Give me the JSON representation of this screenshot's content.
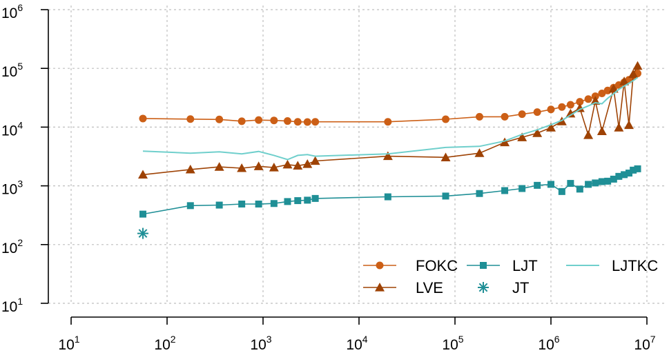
{
  "chart_data": {
    "type": "line",
    "title": "",
    "xlabel": "",
    "ylabel": "",
    "x_scale": "log",
    "y_scale": "log",
    "xlim": [
      10,
      10000000
    ],
    "ylim": [
      10,
      1000000
    ],
    "grid": true,
    "legend_position": "bottom-right",
    "x_ticks": [
      {
        "base": "10",
        "exp": "1",
        "value": 10
      },
      {
        "base": "10",
        "exp": "2",
        "value": 100
      },
      {
        "base": "10",
        "exp": "3",
        "value": 1000
      },
      {
        "base": "10",
        "exp": "4",
        "value": 10000
      },
      {
        "base": "10",
        "exp": "5",
        "value": 100000
      },
      {
        "base": "10",
        "exp": "6",
        "value": 1000000
      },
      {
        "base": "10",
        "exp": "7",
        "value": 10000000
      }
    ],
    "y_ticks": [
      {
        "base": "10",
        "exp": "1",
        "value": 10
      },
      {
        "base": "10",
        "exp": "2",
        "value": 100
      },
      {
        "base": "10",
        "exp": "3",
        "value": 1000
      },
      {
        "base": "10",
        "exp": "4",
        "value": 10000
      },
      {
        "base": "10",
        "exp": "5",
        "value": 100000
      },
      {
        "base": "10",
        "exp": "6",
        "value": 1000000
      }
    ],
    "series": [
      {
        "name": "FOKC",
        "color": "#cc5f16",
        "marker": "circle",
        "line": true,
        "x": [
          56,
          175,
          350,
          600,
          900,
          1300,
          1800,
          2300,
          2900,
          3500,
          20000,
          80000,
          180000,
          330000,
          500000,
          720000,
          1000000,
          1300000,
          1600000,
          2000000,
          2450000,
          2900000,
          3400000,
          3900000,
          4500000,
          5100000,
          5800000,
          6500000,
          7200000,
          8000000
        ],
        "y": [
          14000,
          13700,
          13500,
          12600,
          13200,
          13000,
          12700,
          12300,
          12200,
          12300,
          12300,
          13600,
          15000,
          15000,
          16600,
          18000,
          20000,
          22000,
          24000,
          27000,
          30000,
          33500,
          37500,
          42000,
          47000,
          52000,
          58000,
          64000,
          72000,
          82000
        ]
      },
      {
        "name": "LVE",
        "color": "#9e4204",
        "marker": "triangle",
        "line": true,
        "x": [
          56,
          175,
          350,
          600,
          900,
          1300,
          1800,
          2300,
          2900,
          3500,
          20000,
          80000,
          180000,
          330000,
          500000,
          720000,
          1000000,
          1300000,
          1600000,
          2000000,
          2450000,
          2900000,
          3400000,
          4500000,
          5100000,
          5800000,
          6500000,
          7200000,
          8000000
        ],
        "y": [
          1550,
          1900,
          2100,
          2000,
          2150,
          2050,
          2300,
          2200,
          2350,
          2650,
          3200,
          3050,
          3600,
          5500,
          6700,
          7900,
          9800,
          12500,
          17000,
          21000,
          7300,
          28000,
          8500,
          45000,
          9800,
          60000,
          10800,
          80000,
          110000
        ]
      },
      {
        "name": "LJT",
        "color": "#1f8f96",
        "marker": "square",
        "line": true,
        "x": [
          56,
          175,
          350,
          600,
          900,
          1300,
          1800,
          2300,
          2900,
          3500,
          20000,
          80000,
          180000,
          330000,
          500000,
          720000,
          1000000,
          1300000,
          1600000,
          2000000,
          2450000,
          2900000,
          3400000,
          3900000,
          4500000,
          5100000,
          5800000,
          6500000,
          7200000,
          8000000
        ],
        "y": [
          330,
          460,
          470,
          490,
          490,
          500,
          540,
          560,
          570,
          610,
          650,
          670,
          740,
          830,
          900,
          1020,
          1060,
          800,
          1100,
          880,
          1060,
          1120,
          1180,
          1200,
          1300,
          1450,
          1550,
          1650,
          1850,
          1950
        ]
      },
      {
        "name": "JT",
        "color": "#1f8f96",
        "marker": "asterisk",
        "line": false,
        "x": [
          56
        ],
        "y": [
          155
        ]
      },
      {
        "name": "LJTKC",
        "color": "#6fcfcc",
        "marker": "none",
        "line": true,
        "x": [
          56,
          175,
          350,
          600,
          900,
          1300,
          1800,
          2300,
          2900,
          3500,
          20000,
          80000,
          180000,
          330000,
          500000,
          720000,
          1000000,
          1300000,
          1600000,
          2000000,
          2450000,
          2900000,
          3400000,
          3900000,
          4500000,
          5100000,
          5800000,
          6500000,
          7200000,
          8000000
        ],
        "y": [
          3900,
          3600,
          3800,
          3500,
          3850,
          3300,
          2800,
          3300,
          3400,
          3200,
          3500,
          4500,
          4700,
          5800,
          7500,
          9000,
          11000,
          13000,
          16000,
          20000,
          23000,
          26000,
          25000,
          31000,
          37000,
          44000,
          50000,
          56000,
          62000,
          70000
        ]
      }
    ],
    "legend": [
      {
        "label": "FOKC",
        "series": 0
      },
      {
        "label": "LJT",
        "series": 2
      },
      {
        "label": "LJTKC",
        "series": 4
      },
      {
        "label": "LVE",
        "series": 1
      },
      {
        "label": "JT",
        "series": 3
      }
    ]
  }
}
